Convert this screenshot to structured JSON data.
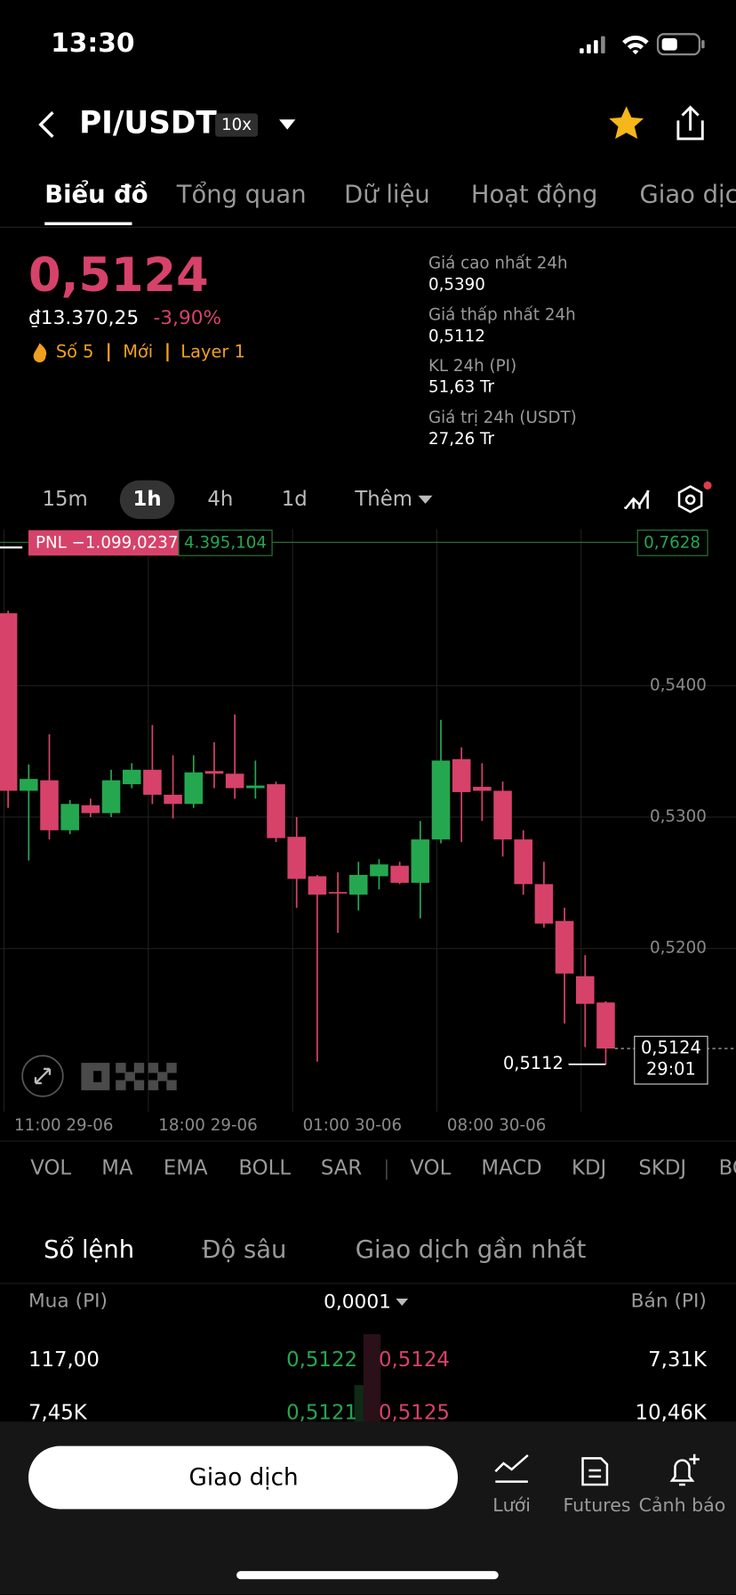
{
  "status_bar": {
    "time": "13:30"
  },
  "header": {
    "pair": "PI/USDT",
    "leverage": "10x"
  },
  "tabs": [
    "Biểu đồ",
    "Tổng quan",
    "Dữ liệu",
    "Hoạt động",
    "Giao dịch"
  ],
  "price": {
    "last": "0,5124",
    "fiat": "₫13.370,25",
    "change": "-3,90%",
    "tags": [
      "Số 5",
      "Mới",
      "Layer 1"
    ]
  },
  "stats": [
    {
      "label": "Giá cao nhất 24h",
      "value": "0,5390"
    },
    {
      "label": "Giá thấp nhất 24h",
      "value": "0,5112"
    },
    {
      "label": "KL 24h (PI)",
      "value": "51,63 Tr"
    },
    {
      "label": "Giá trị 24h (USDT)",
      "value": "27,26 Tr"
    }
  ],
  "intervals": [
    "15m",
    "1h",
    "4h",
    "1d",
    "Thêm"
  ],
  "chart": {
    "type": "candlestick",
    "open": [
      0.5455,
      0.532,
      0.5328,
      0.529,
      0.5309,
      0.5303,
      0.5325,
      0.5336,
      0.5317,
      0.531,
      0.5335,
      0.5333,
      0.5322,
      0.5325,
      0.5285,
      0.5255,
      0.5243,
      0.5241,
      0.5255,
      0.5263,
      0.525,
      0.5283,
      0.5344,
      0.5323,
      0.532,
      0.5283,
      0.5249,
      0.5221,
      0.5179,
      0.5159
    ],
    "high": [
      0.5457,
      0.534,
      0.5363,
      0.5313,
      0.5314,
      0.5336,
      0.5341,
      0.537,
      0.5347,
      0.5347,
      0.5357,
      0.5378,
      0.5343,
      0.5327,
      0.53,
      0.5256,
      0.5258,
      0.5266,
      0.5268,
      0.5266,
      0.5297,
      0.5374,
      0.5353,
      0.5341,
      0.5327,
      0.529,
      0.5266,
      0.5231,
      0.5195,
      0.516
    ],
    "low": [
      0.5307,
      0.5267,
      0.5283,
      0.5287,
      0.53,
      0.53,
      0.5322,
      0.531,
      0.5299,
      0.5307,
      0.5322,
      0.5314,
      0.5314,
      0.5281,
      0.5231,
      0.5114,
      0.5212,
      0.5229,
      0.5245,
      0.5249,
      0.5223,
      0.528,
      0.5281,
      0.5297,
      0.527,
      0.5241,
      0.5216,
      0.5143,
      0.5125,
      0.5112
    ],
    "close": [
      0.532,
      0.5329,
      0.529,
      0.531,
      0.5303,
      0.5328,
      0.5336,
      0.5317,
      0.531,
      0.5334,
      0.5333,
      0.5322,
      0.5324,
      0.5284,
      0.5253,
      0.5241,
      0.5242,
      0.5256,
      0.5264,
      0.525,
      0.5283,
      0.5343,
      0.5319,
      0.532,
      0.5283,
      0.5249,
      0.5219,
      0.5181,
      0.5158,
      0.5124
    ],
    "up_color": "#25a750",
    "down_color": "#d6426a",
    "ylim": [
      0.5076,
      0.5519
    ],
    "yticks": [
      {
        "value": 0.54,
        "label": "0,5400"
      },
      {
        "value": 0.53,
        "label": "0,5300"
      },
      {
        "value": 0.52,
        "label": "0,5200"
      }
    ],
    "xticks": [
      {
        "value": 0,
        "label": "11:00 29-06"
      },
      {
        "value": 7,
        "label": "18:00 29-06"
      },
      {
        "value": 14,
        "label": "01:00 30-06"
      },
      {
        "value": 21,
        "label": "08:00 30-06"
      },
      {
        "value": 28,
        "label": ""
      }
    ],
    "low_marker": {
      "value": 0.5112,
      "label": "0,5112"
    },
    "last_price": {
      "value": 0.5124,
      "label": "0,5124"
    },
    "countdown": "29:01",
    "pnl": {
      "label": "PNL −1.099,0237",
      "amount": "4.395,104",
      "price": "0,7628"
    }
  },
  "indicators": [
    "VOL",
    "MA",
    "EMA",
    "BOLL",
    "SAR",
    "VOL",
    "MACD",
    "KDJ",
    "SKDJ",
    "BOLL"
  ],
  "orderbook": {
    "tabs": [
      "Sổ lệnh",
      "Độ sâu",
      "Giao dịch gần nhất"
    ],
    "buy_header": "Mua (PI)",
    "precision": "0,0001",
    "sell_header": "Bán (PI)",
    "rows": [
      {
        "buy_qty": "117,00",
        "bid": "0,5122",
        "ask": "0,5124",
        "sell_qty": "7,31K"
      },
      {
        "buy_qty": "7,45K",
        "bid": "0,5121",
        "ask": "0,5125",
        "sell_qty": "10,46K"
      }
    ]
  },
  "bottom_bar": {
    "trade": "Giao dịch",
    "items": [
      "Lưới",
      "Futures",
      "Cảnh báo"
    ]
  }
}
